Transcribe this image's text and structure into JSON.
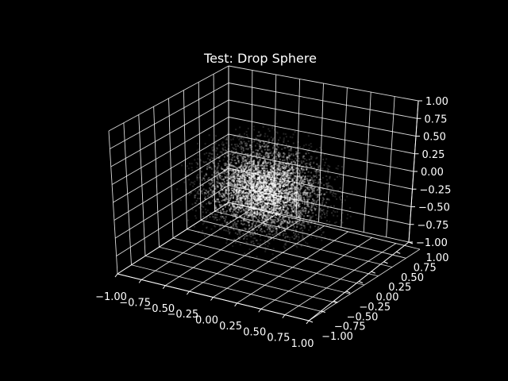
{
  "chart_data": {
    "type": "scatter",
    "title": "Test: Drop Sphere",
    "xlabel": "",
    "ylabel": "",
    "zlabel": "",
    "xlim": [
      -1.0,
      1.0
    ],
    "ylim": [
      -1.0,
      1.0
    ],
    "zlim": [
      -1.0,
      1.0
    ],
    "x_ticks": [
      "−1.00",
      "−0.75",
      "−0.50",
      "−0.25",
      "0.00",
      "0.25",
      "0.50",
      "0.75",
      "1.00"
    ],
    "y_ticks": [
      "−1.00",
      "−0.75",
      "−0.50",
      "−0.25",
      "0.00",
      "0.25",
      "0.50",
      "0.75",
      "1.00"
    ],
    "z_ticks": [
      "−1.00",
      "−0.75",
      "−0.50",
      "−0.25",
      "0.00",
      "0.25",
      "0.50",
      "0.75",
      "1.00"
    ],
    "grid": true,
    "background": "#000000",
    "foreground": "#ffffff",
    "point_color": "#ffffff",
    "distribution": "dense spherical cloud of points centered near the origin, brightest at the center and fading toward the edges"
  }
}
